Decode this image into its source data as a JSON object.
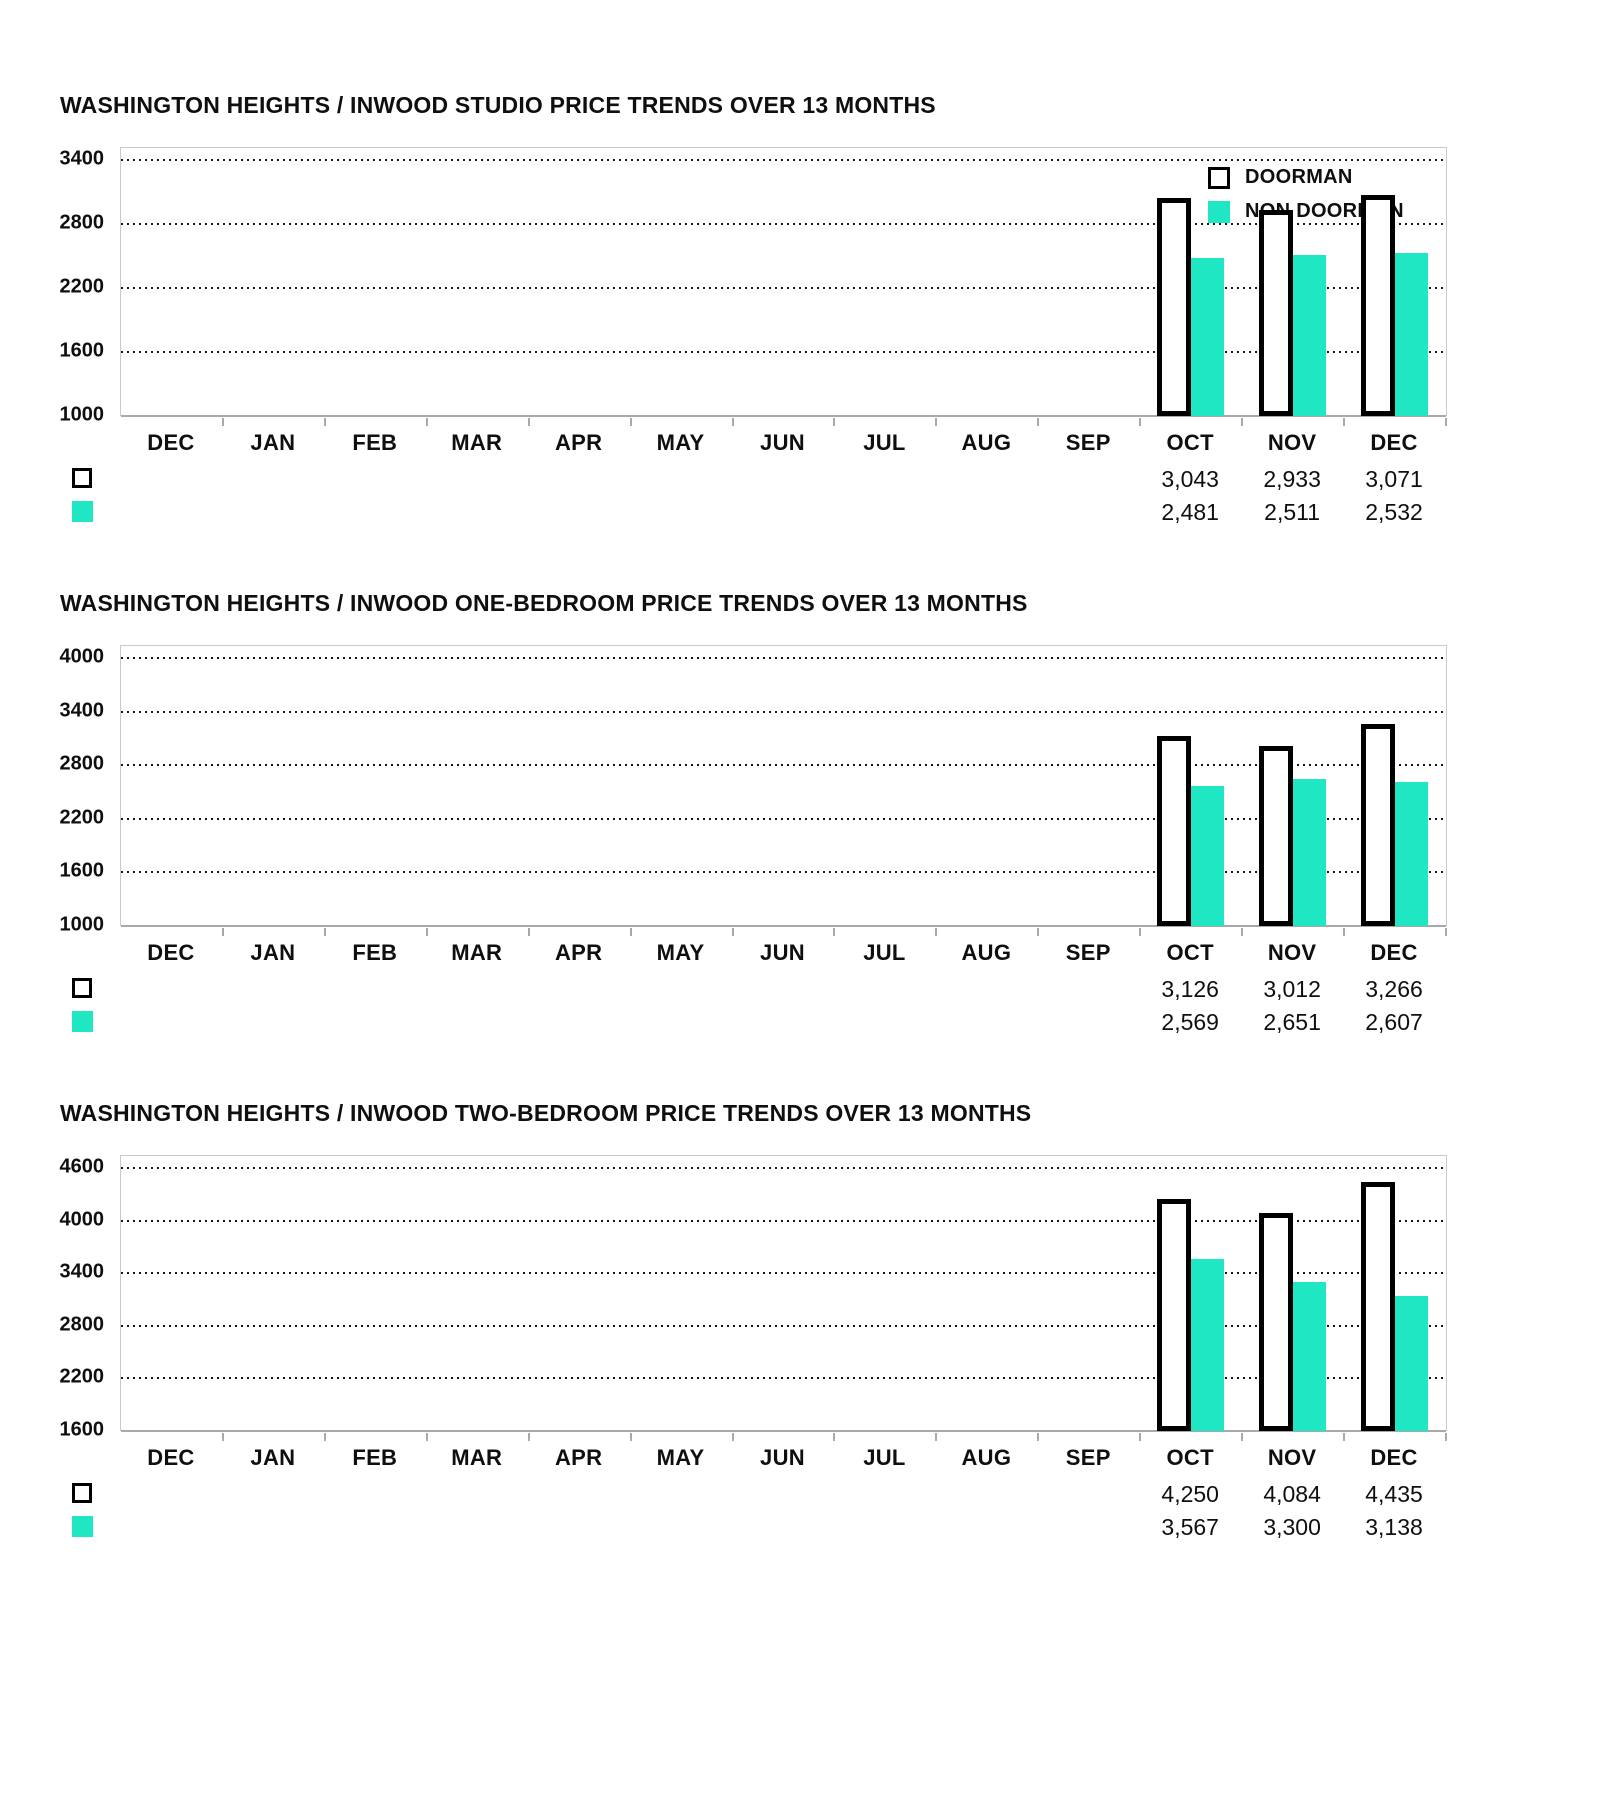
{
  "page": {
    "background": "#ffffff"
  },
  "colors": {
    "non_doorman_teal": "#1fe7c3",
    "bar_outline": "#000000",
    "axis_gray": "#a9a9a9",
    "grid_dot": "#141414",
    "text": "#0f0f0f"
  },
  "legend": {
    "position": "top-right",
    "items": [
      {
        "label": "DOORMAN",
        "swatch": "outline-square",
        "fill": "#ffffff",
        "border": "#000000"
      },
      {
        "label": "NON DOORMAN",
        "swatch": "solid-square",
        "fill": "#1fe7c3"
      }
    ]
  },
  "chart_data": [
    {
      "type": "bar",
      "title": "WASHINGTON HEIGHTS / INWOOD STUDIO PRICE TRENDS OVER 13 MONTHS",
      "categories": [
        "DEC",
        "JAN",
        "FEB",
        "MAR",
        "APR",
        "MAY",
        "JUN",
        "JUL",
        "AUG",
        "SEP",
        "OCT",
        "NOV",
        "DEC"
      ],
      "ylim": [
        1000,
        3400
      ],
      "yticks": [
        3400,
        2800,
        2200,
        1600,
        1000
      ],
      "grid": "horizontal-dotted",
      "series": [
        {
          "name": "DOORMAN",
          "values": [
            null,
            null,
            null,
            null,
            null,
            null,
            null,
            null,
            null,
            null,
            3043,
            2933,
            3071
          ],
          "value_labels": [
            null,
            null,
            null,
            null,
            null,
            null,
            null,
            null,
            null,
            null,
            "3,043",
            "2,933",
            "3,071"
          ]
        },
        {
          "name": "NON DOORMAN",
          "values": [
            null,
            null,
            null,
            null,
            null,
            null,
            null,
            null,
            null,
            null,
            2481,
            2511,
            2532
          ],
          "value_labels": [
            null,
            null,
            null,
            null,
            null,
            null,
            null,
            null,
            null,
            null,
            "2,481",
            "2,511",
            "2,532"
          ]
        }
      ]
    },
    {
      "type": "bar",
      "title": "WASHINGTON HEIGHTS / INWOOD ONE-BEDROOM PRICE TRENDS OVER 13 MONTHS",
      "categories": [
        "DEC",
        "JAN",
        "FEB",
        "MAR",
        "APR",
        "MAY",
        "JUN",
        "JUL",
        "AUG",
        "SEP",
        "OCT",
        "NOV",
        "DEC"
      ],
      "ylim": [
        1000,
        4000
      ],
      "yticks": [
        4000,
        3400,
        2800,
        2200,
        1600,
        1000
      ],
      "grid": "horizontal-dotted",
      "series": [
        {
          "name": "DOORMAN",
          "values": [
            null,
            null,
            null,
            null,
            null,
            null,
            null,
            null,
            null,
            null,
            3126,
            3012,
            3266
          ],
          "value_labels": [
            null,
            null,
            null,
            null,
            null,
            null,
            null,
            null,
            null,
            null,
            "3,126",
            "3,012",
            "3,266"
          ]
        },
        {
          "name": "NON DOORMAN",
          "values": [
            null,
            null,
            null,
            null,
            null,
            null,
            null,
            null,
            null,
            null,
            2569,
            2651,
            2607
          ],
          "value_labels": [
            null,
            null,
            null,
            null,
            null,
            null,
            null,
            null,
            null,
            null,
            "2,569",
            "2,651",
            "2,607"
          ]
        }
      ]
    },
    {
      "type": "bar",
      "title": "WASHINGTON HEIGHTS / INWOOD TWO-BEDROOM PRICE TRENDS OVER 13 MONTHS",
      "categories": [
        "DEC",
        "JAN",
        "FEB",
        "MAR",
        "APR",
        "MAY",
        "JUN",
        "JUL",
        "AUG",
        "SEP",
        "OCT",
        "NOV",
        "DEC"
      ],
      "ylim": [
        1600,
        4600
      ],
      "yticks": [
        4600,
        4000,
        3400,
        2800,
        2200,
        1600
      ],
      "grid": "horizontal-dotted",
      "series": [
        {
          "name": "DOORMAN",
          "values": [
            null,
            null,
            null,
            null,
            null,
            null,
            null,
            null,
            null,
            null,
            4250,
            4084,
            4435
          ],
          "value_labels": [
            null,
            null,
            null,
            null,
            null,
            null,
            null,
            null,
            null,
            null,
            "4,250",
            "4,084",
            "4,435"
          ]
        },
        {
          "name": "NON DOORMAN",
          "values": [
            null,
            null,
            null,
            null,
            null,
            null,
            null,
            null,
            null,
            null,
            3567,
            3300,
            3138
          ],
          "value_labels": [
            null,
            null,
            null,
            null,
            null,
            null,
            null,
            null,
            null,
            null,
            "3,567",
            "3,300",
            "3,138"
          ]
        }
      ]
    }
  ]
}
